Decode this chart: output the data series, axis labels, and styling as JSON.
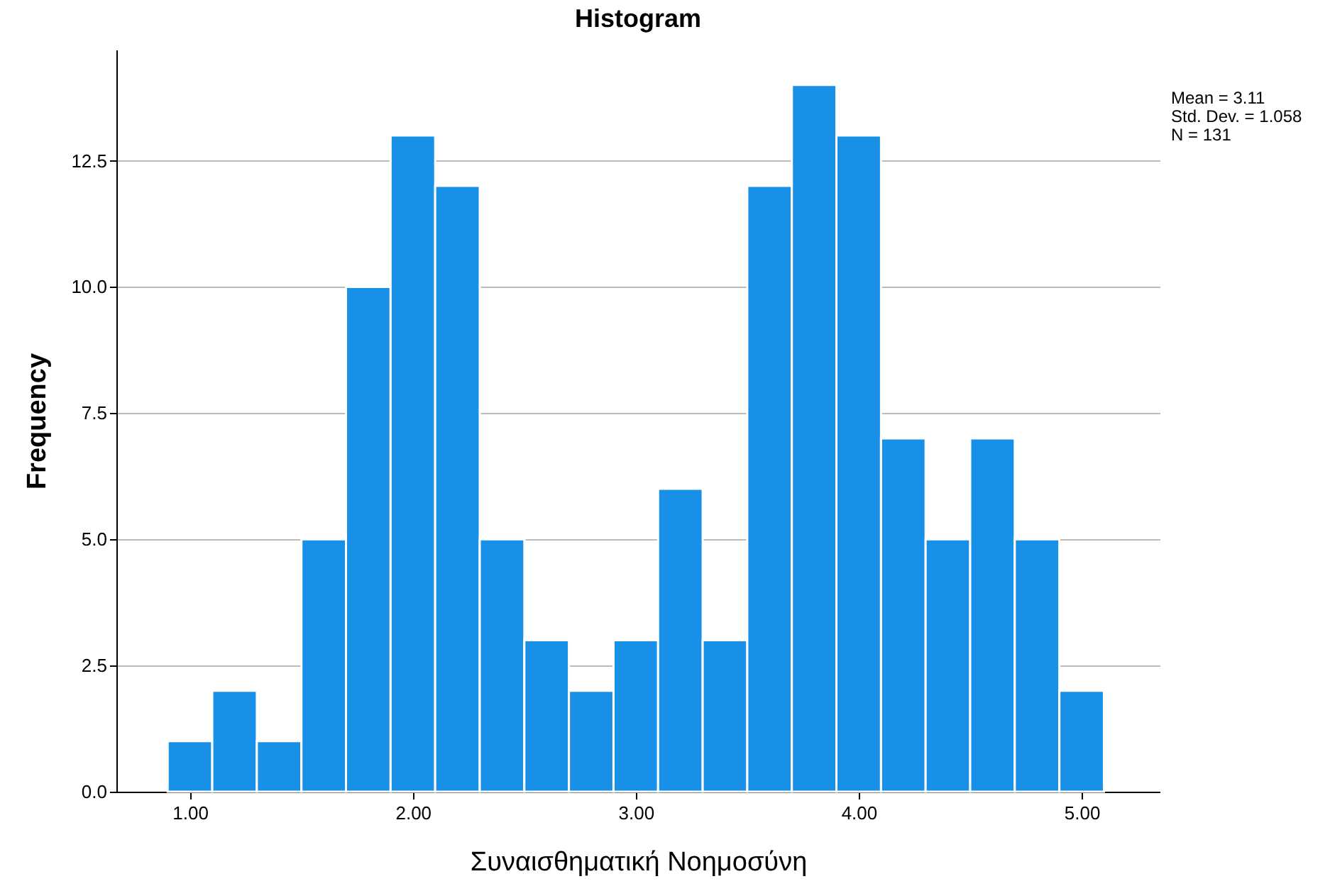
{
  "chart_data": {
    "type": "histogram",
    "title": "Histogram",
    "xlabel": "Συναισθηματική Νοημοσύνη",
    "ylabel": "Frequency",
    "bins": [
      0.9,
      1.1,
      1.3,
      1.5,
      1.7,
      1.9,
      2.1,
      2.3,
      2.5,
      2.7,
      2.9,
      3.1,
      3.3,
      3.5,
      3.7,
      3.9,
      4.1,
      4.3,
      4.5,
      4.7,
      4.9,
      5.1
    ],
    "values": [
      1,
      2,
      1,
      5,
      10,
      13,
      12,
      5,
      3,
      2,
      3,
      6,
      3,
      12,
      14,
      13,
      7,
      5,
      7,
      5,
      2
    ],
    "color": "#1990e8",
    "xlim": [
      0.67,
      5.35
    ],
    "xticks": [
      {
        "value": 1,
        "label": "1.00"
      },
      {
        "value": 2,
        "label": "2.00"
      },
      {
        "value": 3,
        "label": "3.00"
      },
      {
        "value": 4,
        "label": "4.00"
      },
      {
        "value": 5,
        "label": "5.00"
      }
    ],
    "ylim": [
      0,
      14.7
    ],
    "yticks": [
      {
        "value": 0,
        "label": "0.0"
      },
      {
        "value": 2.5,
        "label": "2.5"
      },
      {
        "value": 5,
        "label": "5.0"
      },
      {
        "value": 7.5,
        "label": "7.5"
      },
      {
        "value": 10,
        "label": "10.0"
      },
      {
        "value": 12.5,
        "label": "12.5"
      }
    ],
    "grid": "y",
    "annotations": [
      "Mean = 3.11",
      "Std. Dev. = 1.058",
      "N = 131"
    ]
  }
}
